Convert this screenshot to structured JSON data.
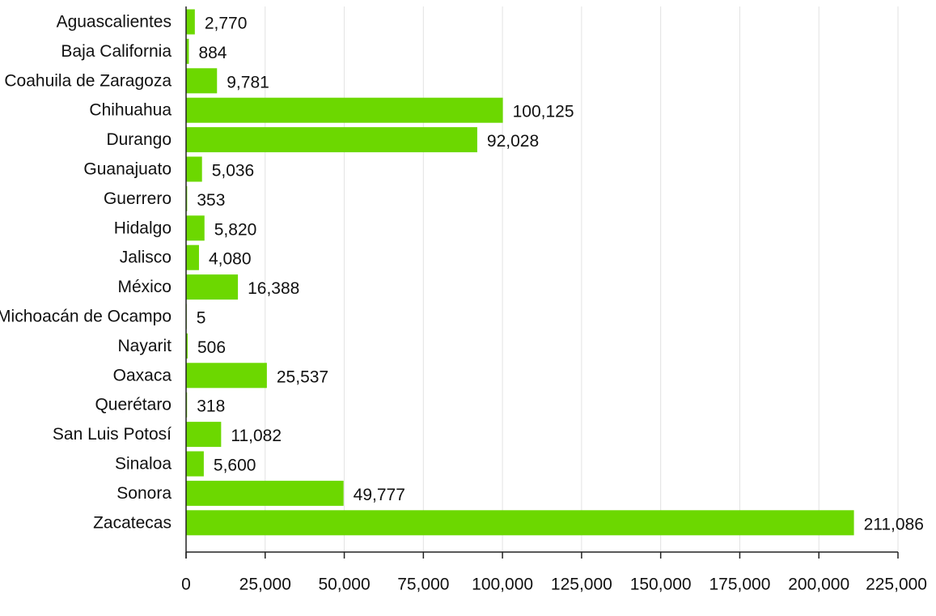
{
  "chart_data": {
    "type": "bar",
    "orientation": "horizontal",
    "title": "",
    "xlabel": "",
    "ylabel": "",
    "categories": [
      "Aguascalientes",
      "Baja California",
      "Coahuila de Zaragoza",
      "Chihuahua",
      "Durango",
      "Guanajuato",
      "Guerrero",
      "Hidalgo",
      "Jalisco",
      "México",
      "Michoacán de Ocampo",
      "Nayarit",
      "Oaxaca",
      "Querétaro",
      "San Luis Potosí",
      "Sinaloa",
      "Sonora",
      "Zacatecas"
    ],
    "values": [
      2770,
      884,
      9781,
      100125,
      92028,
      5036,
      353,
      5820,
      4080,
      16388,
      5,
      506,
      25537,
      318,
      11082,
      5600,
      49777,
      211086
    ],
    "value_labels": [
      "2,770",
      "884",
      "9,781",
      "100,125",
      "92,028",
      "5,036",
      "353",
      "5,820",
      "4,080",
      "16,388",
      "5",
      "506",
      "25,537",
      "318",
      "11,082",
      "5,600",
      "49,777",
      "211,086"
    ],
    "xlim": [
      0,
      225000
    ],
    "x_ticks": [
      0,
      25000,
      50000,
      75000,
      100000,
      125000,
      150000,
      175000,
      200000,
      225000
    ],
    "x_tick_labels": [
      "0",
      "25,000",
      "50,000",
      "75,000",
      "100,000",
      "125,000",
      "150,000",
      "175,000",
      "200,000",
      "225,000"
    ],
    "grid": "vertical",
    "legend": "none",
    "bar_color": "#6cd800"
  }
}
